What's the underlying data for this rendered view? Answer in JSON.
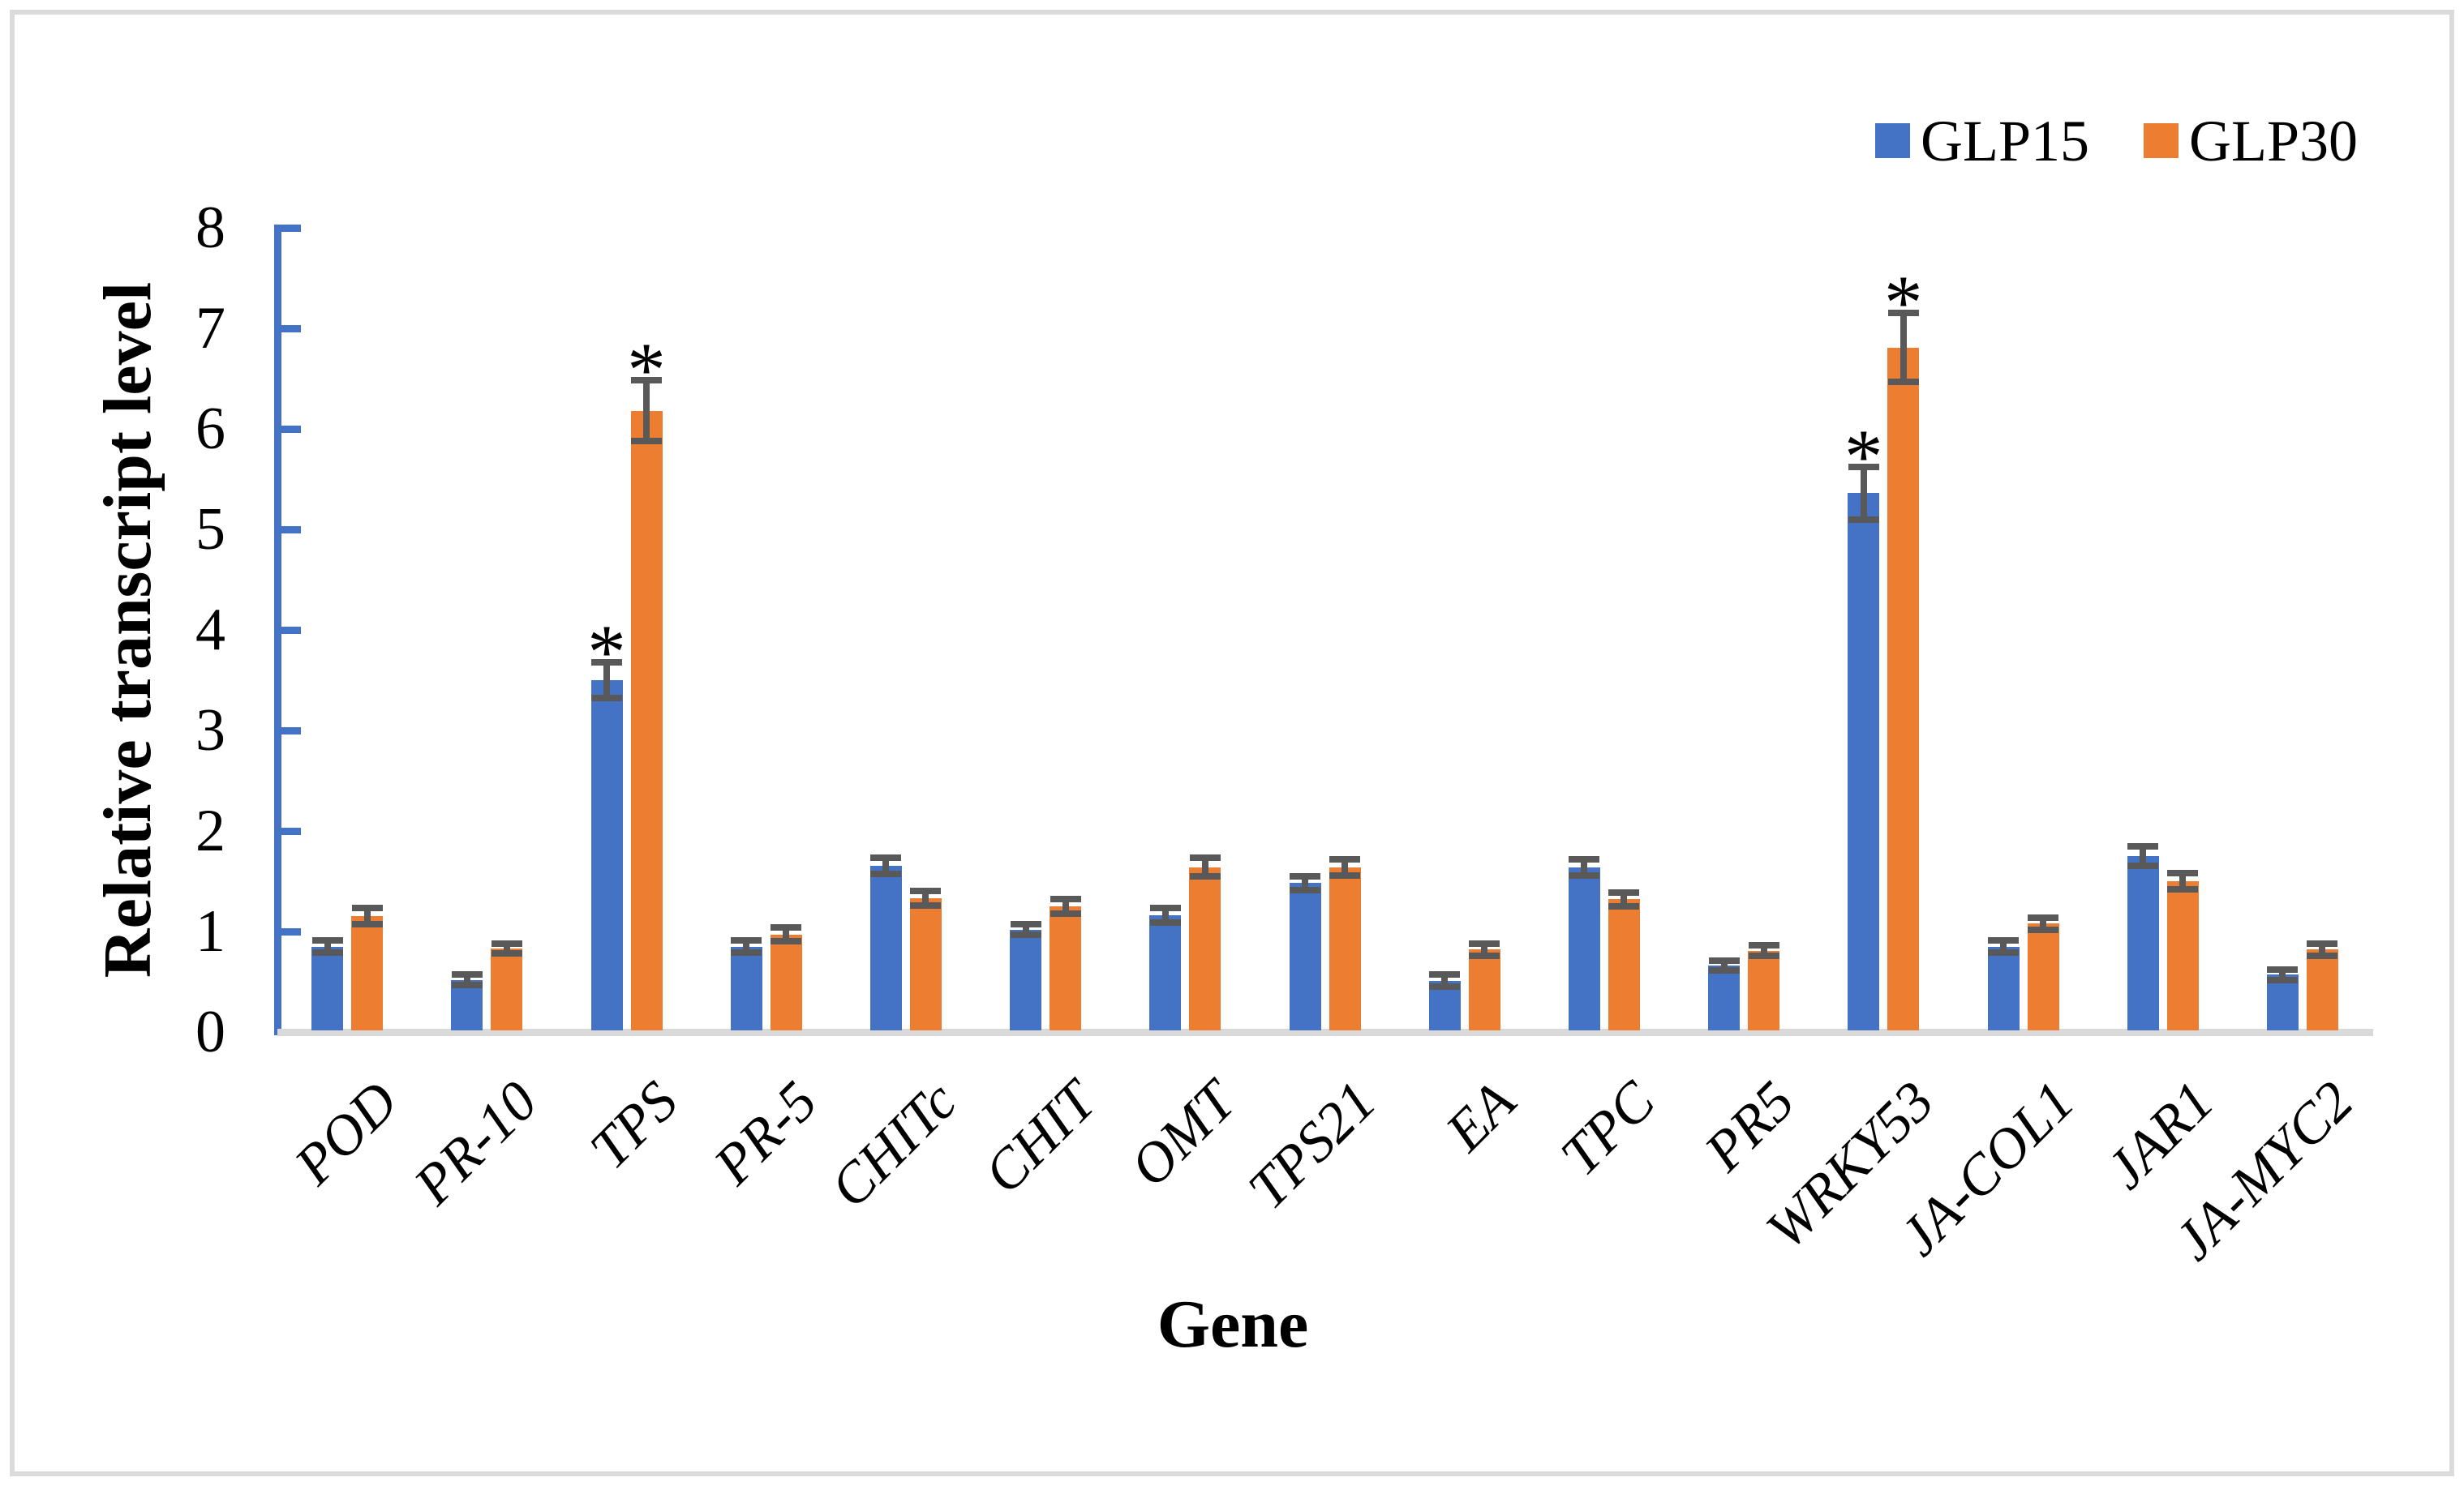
{
  "figure": {
    "background": "#FFFFFF",
    "border_color": "#DBDBDB"
  },
  "chart_data": {
    "type": "bar",
    "title": "",
    "xlabel": "Gene",
    "ylabel": "Relative transcript level",
    "ylim": [
      0,
      8
    ],
    "yticks": [
      0,
      1,
      2,
      3,
      4,
      5,
      6,
      7,
      8
    ],
    "grid": false,
    "legend_position": "top-right",
    "significance_marker": "*",
    "axis_color": "#4472C4",
    "baseline_color": "#D9D9D9",
    "error_bar_color": "#595959",
    "categories": [
      "POD",
      "PR-10",
      "TPS",
      "PR-5",
      "CHITc",
      "CHIT",
      "OMT",
      "TPS21",
      "EA",
      "TPC",
      "PR5",
      "WRKY53",
      "JA-COL1",
      "JAR1",
      "JA-MYC2"
    ],
    "series": [
      {
        "name": "GLP15",
        "color": "#4472C4",
        "values": [
          0.85,
          0.52,
          3.5,
          0.85,
          1.65,
          1.02,
          1.16,
          1.48,
          0.51,
          1.64,
          0.66,
          5.36,
          0.85,
          1.75,
          0.57
        ],
        "errors": [
          0.06,
          0.05,
          0.18,
          0.06,
          0.08,
          0.05,
          0.07,
          0.07,
          0.06,
          0.08,
          0.05,
          0.26,
          0.06,
          0.1,
          0.05
        ],
        "significant": [
          false,
          false,
          true,
          false,
          false,
          false,
          false,
          false,
          false,
          false,
          false,
          true,
          false,
          false,
          false
        ]
      },
      {
        "name": "GLP30",
        "color": "#ED7D31",
        "values": [
          1.15,
          0.83,
          6.18,
          0.97,
          1.33,
          1.25,
          1.64,
          1.64,
          0.82,
          1.32,
          0.81,
          6.81,
          1.08,
          1.5,
          0.82
        ],
        "errors": [
          0.08,
          0.05,
          0.3,
          0.07,
          0.07,
          0.07,
          0.09,
          0.08,
          0.06,
          0.07,
          0.05,
          0.34,
          0.06,
          0.08,
          0.06
        ],
        "significant": [
          false,
          false,
          true,
          false,
          false,
          false,
          false,
          false,
          false,
          false,
          false,
          true,
          false,
          false,
          false
        ]
      }
    ]
  }
}
